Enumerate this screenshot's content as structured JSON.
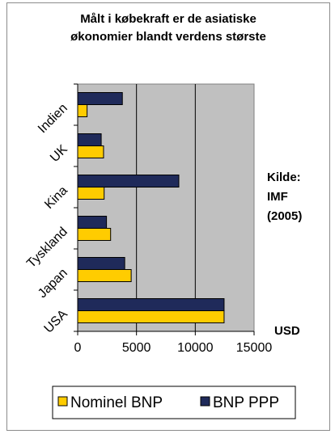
{
  "chart_data": {
    "type": "bar",
    "orientation": "horizontal",
    "title_lines": [
      "Målt i købekraft er de asiatiske",
      "økonomier blandt verdens største"
    ],
    "categories": [
      "USA",
      "Japan",
      "Tyskland",
      "Kina",
      "UK",
      "Indien"
    ],
    "series": [
      {
        "name": "Nominel BNP",
        "color": "#ffcc00",
        "values": [
          12450,
          4550,
          2800,
          2250,
          2200,
          800
        ]
      },
      {
        "name": "BNP PPP",
        "color": "#1f2a5a",
        "values": [
          12450,
          4000,
          2450,
          8600,
          2000,
          3800
        ]
      }
    ],
    "xlim": [
      0,
      15000
    ],
    "xticks": [
      "0",
      "5000",
      "10000",
      "15000"
    ],
    "plot_background": "#c0c0c0",
    "grid": true,
    "legend_position": "bottom",
    "side_labels": [
      "Kilde:",
      "IMF",
      "(2005)"
    ],
    "unit_label": "USD"
  }
}
